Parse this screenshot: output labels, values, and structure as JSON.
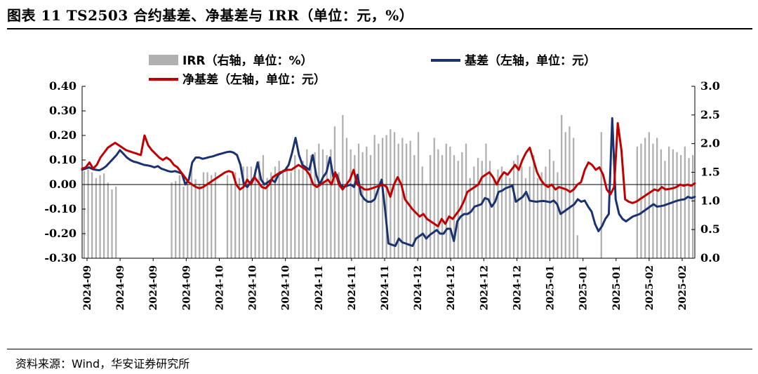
{
  "title": "图表 11 TS2503 合约基差、净基差与 IRR（单位：元，%）",
  "source": "资料来源：Wind，华安证券研究所",
  "colors": {
    "basis": "#1a3270",
    "net_basis": "#c00000",
    "irr": "#b0b0b0"
  },
  "chart_data": {
    "type": "line",
    "y_left": {
      "min": -0.3,
      "max": 0.4,
      "ticks": [
        "-0.30",
        "-0.20",
        "-0.10",
        "0.00",
        "0.10",
        "0.20",
        "0.30",
        "0.40"
      ]
    },
    "y_right": {
      "min": 0.0,
      "max": 3.0,
      "ticks": [
        "0.0",
        "0.5",
        "1.0",
        "1.5",
        "2.0",
        "2.5",
        "3.0"
      ]
    },
    "x_tick_labels": [
      "2024-09",
      "2024-09",
      "2024-09",
      "2024-09",
      "2024-10",
      "2024-10",
      "2024-10",
      "2024-11",
      "2024-11",
      "2024-11",
      "2024-12",
      "2024-12",
      "2024-12",
      "2024-12",
      "2025-01",
      "2025-01",
      "2025-01",
      "2025-02",
      "2025-02"
    ],
    "series": [
      {
        "name": "IRR（右轴，单位：%）",
        "type": "bar",
        "axis": "right",
        "values": [
          1.52,
          1.55,
          1.5,
          1.4,
          1.45,
          1.48,
          1.32,
          1.2,
          1.25,
          0,
          0,
          0,
          0,
          0,
          0,
          0,
          0,
          0,
          0,
          0,
          0,
          0,
          1.32,
          1.35,
          1.45,
          1.25,
          1.3,
          1.6,
          1.38,
          1.3,
          1.5,
          1.5,
          1.45,
          1.5,
          0,
          0,
          1.45,
          1.3,
          1.5,
          1.4,
          1.6,
          1.6,
          1.6,
          1.55,
          1.7,
          1.8,
          1.4,
          1.5,
          1.6,
          1.7,
          1.55,
          1.6,
          1.5,
          1.8,
          1.55,
          1.7,
          1.9,
          1.8,
          1.85,
          2.0,
          1.9,
          1.8,
          1.9,
          2.3,
          1.5,
          2.5,
          2.1,
          1.9,
          1.8,
          2.0,
          1.85,
          1.95,
          1.8,
          2.15,
          2.0,
          2.1,
          2.15,
          2.25,
          2.2,
          2.0,
          2.1,
          2.0,
          2.05,
          1.8,
          2.2,
          1.6,
          1.3,
          1.8,
          2.1,
          1.9,
          1.8,
          2.0,
          1.95,
          1.8,
          1.7,
          1.85,
          2.0,
          1.4,
          1.6,
          1.75,
          1.7,
          2.0,
          1.7,
          1.4,
          1.55,
          1.6,
          1.5,
          1.4,
          1.7,
          1.8,
          1.6,
          1.4,
          1.6,
          1.8,
          1.4,
          1.5,
          1.6,
          1.9,
          1.7,
          1.5,
          2.5,
          2.2,
          2.3,
          2.1,
          0.4,
          0,
          0,
          0,
          0,
          0,
          2.2,
          0,
          0,
          0,
          0,
          0,
          0,
          0,
          0,
          1.95,
          2.0,
          2.1,
          2.2,
          2.0,
          2.1,
          1.9,
          1.7,
          1.95,
          1.9,
          1.85,
          1.8,
          1.95,
          1.75,
          1.8
        ]
      },
      {
        "name": "基差（左轴，单位：元）",
        "type": "line",
        "axis": "left",
        "values": [
          0.06,
          0.065,
          0.07,
          0.063,
          0.06,
          0.058,
          0.065,
          0.075,
          0.09,
          0.105,
          0.12,
          0.14,
          0.125,
          0.11,
          0.1,
          0.093,
          0.09,
          0.085,
          0.08,
          0.078,
          0.075,
          0.07,
          0.075,
          0.065,
          0.06,
          0.055,
          0.052,
          0.055,
          0.05,
          0.045,
          0.0,
          0.02,
          0.09,
          0.11,
          0.11,
          0.105,
          0.108,
          0.112,
          0.115,
          0.12,
          0.124,
          0.128,
          0.132,
          0.134,
          0.13,
          0.12,
          0.08,
          0.0,
          -0.01,
          0.01,
          0.03,
          0.09,
          0.02,
          0.0,
          0.01,
          0.02,
          0.01,
          0.04,
          0.05,
          0.06,
          0.08,
          0.13,
          0.19,
          0.12,
          0.08,
          0.07,
          0.06,
          0.12,
          0.04,
          0.0,
          0.03,
          0.05,
          0.11,
          0.03,
          0.04,
          0.0,
          -0.01,
          -0.005,
          0.0,
          -0.01,
          0.04,
          -0.04,
          -0.06,
          -0.07,
          -0.07,
          -0.06,
          -0.02,
          0.02,
          -0.1,
          -0.24,
          -0.245,
          -0.25,
          -0.22,
          -0.235,
          -0.24,
          -0.245,
          -0.25,
          -0.22,
          -0.21,
          -0.2,
          -0.22,
          -0.205,
          -0.195,
          -0.185,
          -0.2,
          -0.2,
          -0.18,
          -0.18,
          -0.23,
          -0.15,
          -0.13,
          -0.12,
          -0.12,
          -0.11,
          -0.09,
          -0.085,
          -0.08,
          -0.055,
          -0.06,
          -0.09,
          -0.07,
          -0.03,
          -0.025,
          -0.015,
          -0.01,
          -0.005,
          -0.07,
          -0.06,
          -0.05,
          -0.03,
          -0.065,
          -0.068,
          -0.07,
          -0.068,
          -0.067,
          -0.069,
          -0.072,
          -0.065,
          -0.08,
          -0.12,
          -0.11,
          -0.1,
          -0.09,
          -0.08,
          -0.06,
          -0.07,
          -0.065,
          -0.09,
          -0.11,
          -0.16,
          -0.19,
          -0.17,
          -0.14,
          -0.12,
          0.27,
          -0.06,
          -0.12,
          -0.14,
          -0.15,
          -0.14,
          -0.13,
          -0.125,
          -0.12,
          -0.11,
          -0.1,
          -0.09,
          -0.08,
          -0.09,
          -0.088,
          -0.085,
          -0.08,
          -0.075,
          -0.07,
          -0.065,
          -0.062,
          -0.06,
          -0.05,
          -0.055,
          -0.05
        ]
      },
      {
        "name": "净基差（左轴，单位：元）",
        "type": "line",
        "axis": "left",
        "values": [
          0.065,
          0.07,
          0.09,
          0.065,
          0.08,
          0.11,
          0.13,
          0.15,
          0.16,
          0.17,
          0.16,
          0.15,
          0.14,
          0.135,
          0.13,
          0.125,
          0.12,
          0.2,
          0.16,
          0.14,
          0.125,
          0.11,
          0.1,
          0.11,
          0.1,
          0.08,
          0.07,
          0.05,
          0.03,
          0.01,
          0.0,
          -0.01,
          -0.015,
          -0.01,
          0.0,
          0.01,
          0.02,
          0.03,
          0.04,
          0.05,
          0.055,
          0.05,
          0.0,
          -0.02,
          -0.01,
          0.02,
          0.0,
          0.03,
          0.01,
          -0.01,
          -0.015,
          0.0,
          0.03,
          0.04,
          0.05,
          0.055,
          0.06,
          0.06,
          0.07,
          0.08,
          0.07,
          0.06,
          0.04,
          0.0,
          -0.01,
          0.0,
          0.01,
          0.02,
          0.0,
          0.05,
          0.0,
          -0.02,
          0.0,
          0.02,
          0.06,
          0.0,
          -0.01,
          -0.02,
          -0.02,
          -0.015,
          -0.01,
          -0.005,
          0.0,
          -0.01,
          -0.05,
          0.0,
          0.03,
          0.0,
          -0.06,
          -0.08,
          -0.1,
          -0.115,
          -0.13,
          -0.12,
          -0.14,
          -0.15,
          -0.16,
          -0.17,
          -0.14,
          -0.16,
          -0.13,
          -0.14,
          -0.12,
          -0.1,
          -0.07,
          -0.03,
          -0.02,
          -0.01,
          0.0,
          0.03,
          0.04,
          0.05,
          0.03,
          0.0,
          0.03,
          0.05,
          0.04,
          0.06,
          0.08,
          0.06,
          0.1,
          0.13,
          0.15,
          0.1,
          0.05,
          0.02,
          0.0,
          -0.01,
          0.0,
          -0.02,
          -0.01,
          -0.015,
          -0.02,
          -0.03,
          -0.02,
          0.0,
          0.01,
          0.06,
          0.09,
          0.08,
          0.06,
          0.07,
          0.04,
          -0.02,
          -0.04,
          -0.01,
          0.25,
          0.14,
          -0.06,
          -0.07,
          -0.075,
          -0.07,
          -0.06,
          -0.05,
          -0.04,
          -0.03,
          -0.02,
          -0.025,
          -0.01,
          -0.02,
          -0.018,
          -0.015,
          -0.01,
          0.0,
          -0.005,
          0.0,
          -0.005,
          0.005
        ]
      }
    ],
    "legend_placement": "top"
  }
}
